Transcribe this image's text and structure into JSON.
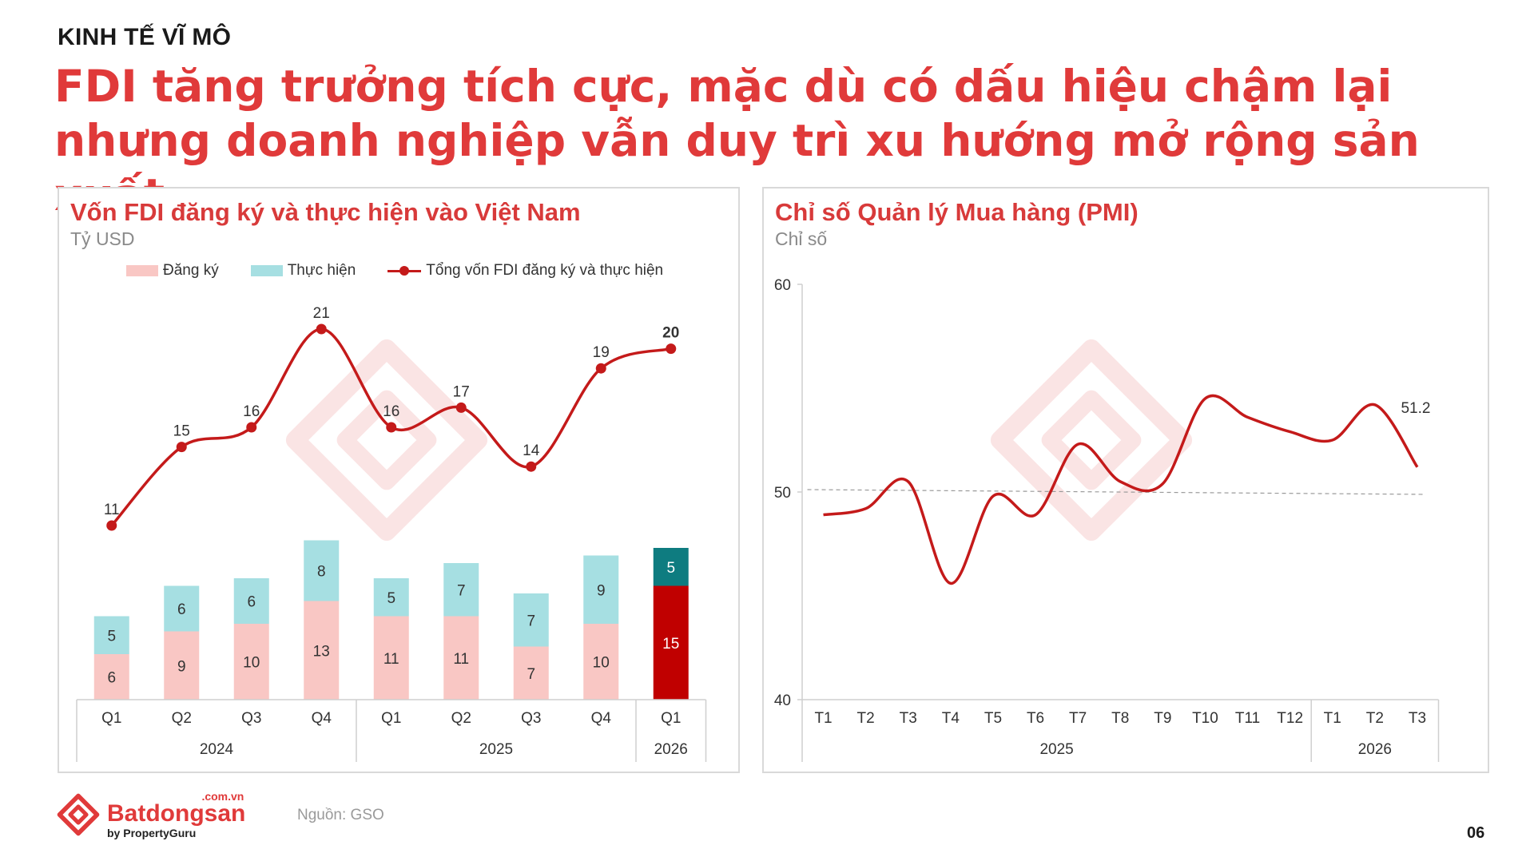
{
  "section_label": "KINH TẾ VĨ MÔ",
  "headline": "FDI tăng trưởng tích cực, mặc dù có dấu hiệu chậm lại nhưng doanh nghiệp vẫn duy trì xu hướng mở rộng sản xuất",
  "colors": {
    "accent": "#e03a3a",
    "registered": "#f9c7c4",
    "disbursed": "#a6dfe2",
    "highlight_registered": "#c00000",
    "highlight_disbursed": "#0e7c80",
    "line": "#c41a1a"
  },
  "left_panel": {
    "title": "Vốn FDI đăng ký và thực hiện vào Việt Nam",
    "unit": "Tỷ USD",
    "legend": {
      "registered": "Đăng ký",
      "disbursed": "Thực hiện",
      "total": "Tổng vốn FDI đăng ký và thực hiện"
    },
    "chart_data": {
      "type": "bar",
      "stacked": true,
      "categories": [
        "Q1",
        "Q2",
        "Q3",
        "Q4",
        "Q1",
        "Q2",
        "Q3",
        "Q4",
        "Q1"
      ],
      "groups": [
        {
          "label": "2024",
          "span": 4
        },
        {
          "label": "2025",
          "span": 4
        },
        {
          "label": "2026",
          "span": 1
        }
      ],
      "series": [
        {
          "name": "Đăng ký",
          "type": "bar",
          "values": [
            6,
            9,
            10,
            13,
            11,
            11,
            7,
            10,
            15
          ]
        },
        {
          "name": "Thực hiện",
          "type": "bar",
          "values": [
            5,
            6,
            6,
            8,
            5,
            7,
            7,
            9,
            5
          ]
        },
        {
          "name": "Tổng vốn FDI đăng ký và thực hiện",
          "type": "line",
          "values": [
            11,
            15,
            16,
            21,
            16,
            17,
            14,
            19,
            20
          ]
        }
      ],
      "highlight_index": 8,
      "grid": false
    }
  },
  "right_panel": {
    "title": "Chỉ số Quản lý Mua hàng (PMI)",
    "unit": "Chỉ số",
    "chart_data": {
      "type": "line",
      "categories": [
        "T1",
        "T2",
        "T3",
        "T4",
        "T5",
        "T6",
        "T7",
        "T8",
        "T9",
        "T10",
        "T11",
        "T12",
        "T1",
        "T2",
        "T3"
      ],
      "groups": [
        {
          "label": "2025",
          "span": 12
        },
        {
          "label": "2026",
          "span": 3
        }
      ],
      "series": [
        {
          "name": "PMI",
          "values": [
            48.9,
            49.2,
            50.5,
            45.6,
            49.8,
            48.9,
            52.3,
            50.5,
            50.4,
            54.5,
            53.6,
            52.9,
            52.5,
            54.2,
            51.2
          ]
        }
      ],
      "last_label": "51.2",
      "reference_line": 50,
      "ylim": [
        40,
        60
      ],
      "yticks": [
        "40",
        "50",
        "60"
      ],
      "grid": false
    }
  },
  "footer": {
    "logo_com": ".com.vn",
    "logo_name": "Batdongsan",
    "logo_by": "by PropertyGuru",
    "source": "Nguồn: GSO",
    "page_number": "06"
  }
}
